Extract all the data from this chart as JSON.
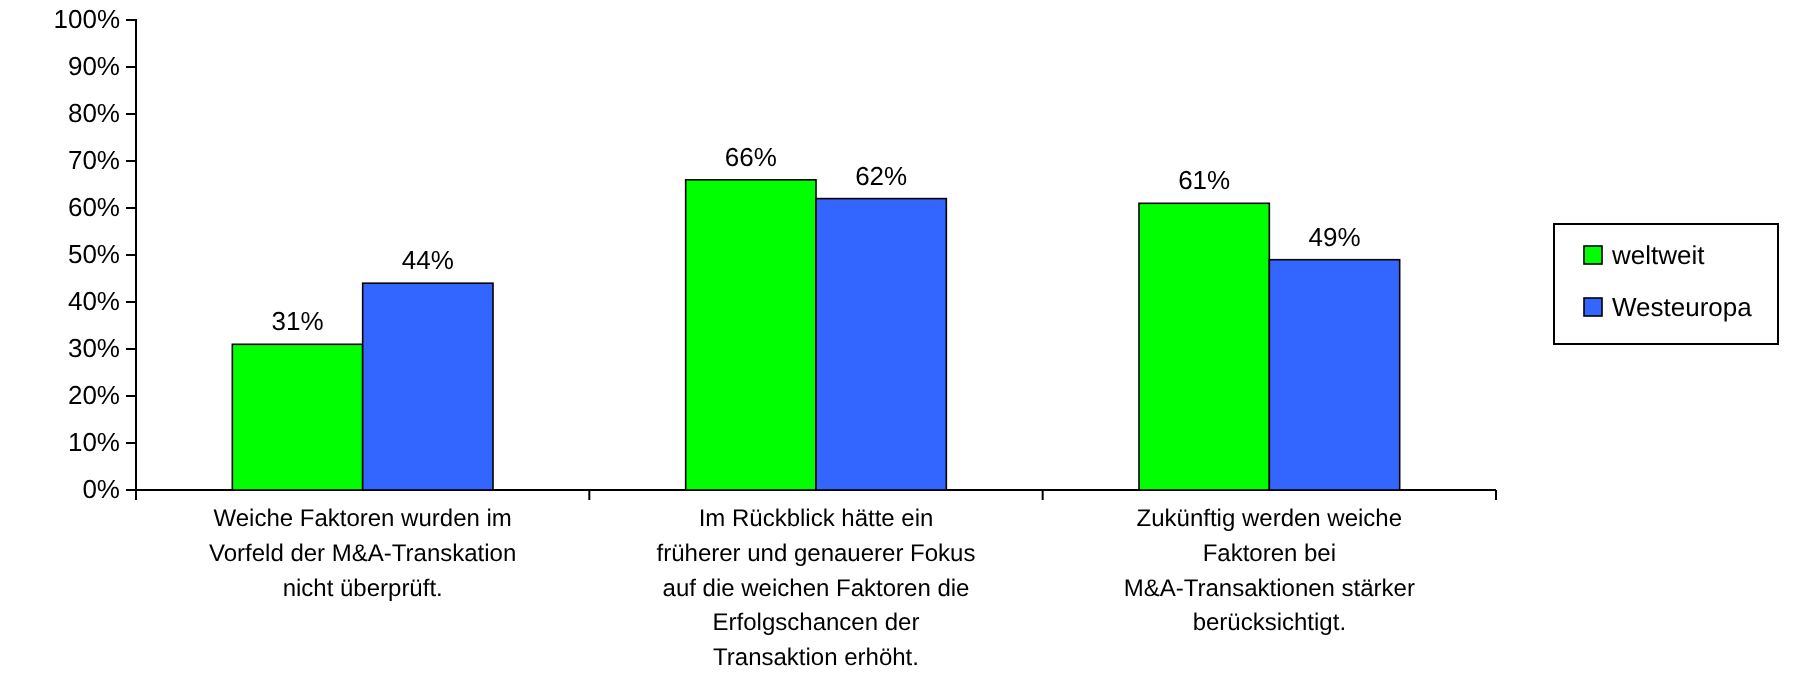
{
  "chart_data": {
    "type": "bar",
    "categories": [
      "Weiche Faktoren wurden im Vorfeld der M&A-Transkation nicht überprüft.",
      "Im Rückblick hätte ein früherer und genauerer Fokus auf die weichen Faktoren die Erfolgschancen der Transaktion erhöht.",
      "Zukünftig werden weiche Faktoren bei M&A-Transaktionen stärker berücksichtigt."
    ],
    "series": [
      {
        "name": "weltweit",
        "color": "#00ff00",
        "values": [
          31,
          66,
          61
        ],
        "value_labels": [
          "31%",
          "66%",
          "61%"
        ]
      },
      {
        "name": "Westeuropa",
        "color": "#3366ff",
        "values": [
          44,
          62,
          49
        ],
        "value_labels": [
          "44%",
          "62%",
          "49%"
        ]
      }
    ],
    "ylim": [
      0,
      100
    ],
    "yticks": [
      {
        "value": 0,
        "label": "0%"
      },
      {
        "value": 10,
        "label": "10%"
      },
      {
        "value": 20,
        "label": "20%"
      },
      {
        "value": 30,
        "label": "30%"
      },
      {
        "value": 40,
        "label": "40%"
      },
      {
        "value": 50,
        "label": "50%"
      },
      {
        "value": 60,
        "label": "60%"
      },
      {
        "value": 70,
        "label": "70%"
      },
      {
        "value": 80,
        "label": "80%"
      },
      {
        "value": 90,
        "label": "90%"
      },
      {
        "value": 100,
        "label": "100%"
      }
    ],
    "grid": false,
    "legend": "right"
  }
}
